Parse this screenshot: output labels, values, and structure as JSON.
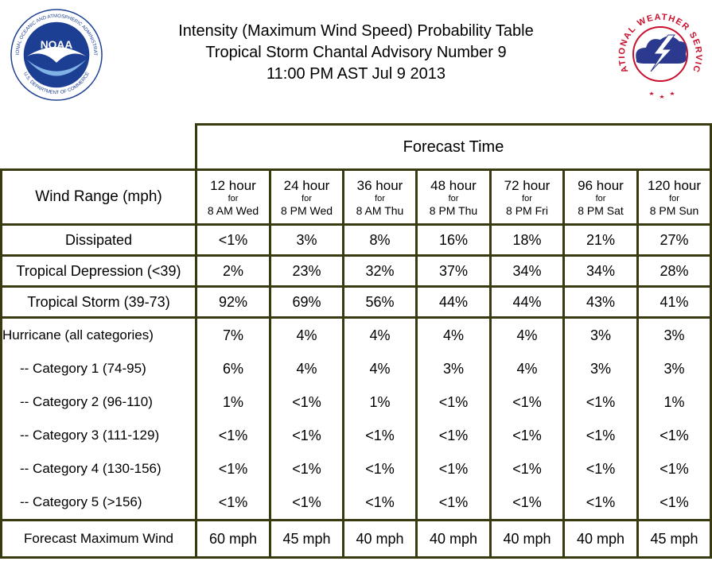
{
  "header": {
    "line1": "Intensity (Maximum Wind Speed) Probability Table",
    "line2": "Tropical Storm Chantal Advisory Number 9",
    "line3": "11:00 PM AST Jul 9 2013"
  },
  "logos": {
    "noaa_text": "NOAA",
    "noaa_ring": "NATIONAL OCEANIC AND ATMOSPHERIC ADMINISTRATION",
    "noaa_ring_bottom": "U.S. DEPARTMENT OF COMMERCE",
    "nws_ring": "NATIONAL WEATHER SERVICE"
  },
  "table": {
    "forecast_time_label": "Forecast Time",
    "wind_range_label": "Wind Range (mph)",
    "for_word": "for",
    "columns": [
      {
        "hour": "12 hour",
        "when": "8 AM Wed"
      },
      {
        "hour": "24 hour",
        "when": "8 PM Wed"
      },
      {
        "hour": "36 hour",
        "when": "8 AM Thu"
      },
      {
        "hour": "48 hour",
        "when": "8 PM Thu"
      },
      {
        "hour": "72 hour",
        "when": "8 PM Fri"
      },
      {
        "hour": "96 hour",
        "when": "8 PM Sat"
      },
      {
        "hour": "120 hour",
        "when": "8 PM Sun"
      }
    ],
    "rows": [
      {
        "label": "Dissipated",
        "values": [
          "<1%",
          "3%",
          "8%",
          "16%",
          "18%",
          "21%",
          "27%"
        ]
      },
      {
        "label": "Tropical Depression (<39)",
        "values": [
          "2%",
          "23%",
          "32%",
          "37%",
          "34%",
          "34%",
          "28%"
        ]
      },
      {
        "label": "Tropical Storm (39-73)",
        "values": [
          "92%",
          "69%",
          "56%",
          "44%",
          "44%",
          "43%",
          "41%"
        ]
      }
    ],
    "hurricane": [
      {
        "label": "Hurricane (all categories)",
        "values": [
          "7%",
          "4%",
          "4%",
          "4%",
          "4%",
          "3%",
          "3%"
        ]
      },
      {
        "label": "-- Category 1 (74-95)",
        "values": [
          "6%",
          "4%",
          "4%",
          "3%",
          "4%",
          "3%",
          "3%"
        ]
      },
      {
        "label": "-- Category 2 (96-110)",
        "values": [
          "1%",
          "<1%",
          "1%",
          "<1%",
          "<1%",
          "<1%",
          "1%"
        ]
      },
      {
        "label": "-- Category 3 (111-129)",
        "values": [
          "<1%",
          "<1%",
          "<1%",
          "<1%",
          "<1%",
          "<1%",
          "<1%"
        ]
      },
      {
        "label": "-- Category 4 (130-156)",
        "values": [
          "<1%",
          "<1%",
          "<1%",
          "<1%",
          "<1%",
          "<1%",
          "<1%"
        ]
      },
      {
        "label": "-- Category 5 (>156)",
        "values": [
          "<1%",
          "<1%",
          "<1%",
          "<1%",
          "<1%",
          "<1%",
          "<1%"
        ]
      }
    ],
    "max_wind": {
      "label": "Forecast Maximum Wind",
      "values": [
        "60 mph",
        "45 mph",
        "40 mph",
        "40 mph",
        "40 mph",
        "40 mph",
        "45 mph"
      ]
    }
  },
  "colors": {
    "border": "#3a3a10",
    "noaa_blue": "#1d3f93",
    "nws_red": "#c8102e",
    "nws_cloud": "#2b3a8f"
  }
}
